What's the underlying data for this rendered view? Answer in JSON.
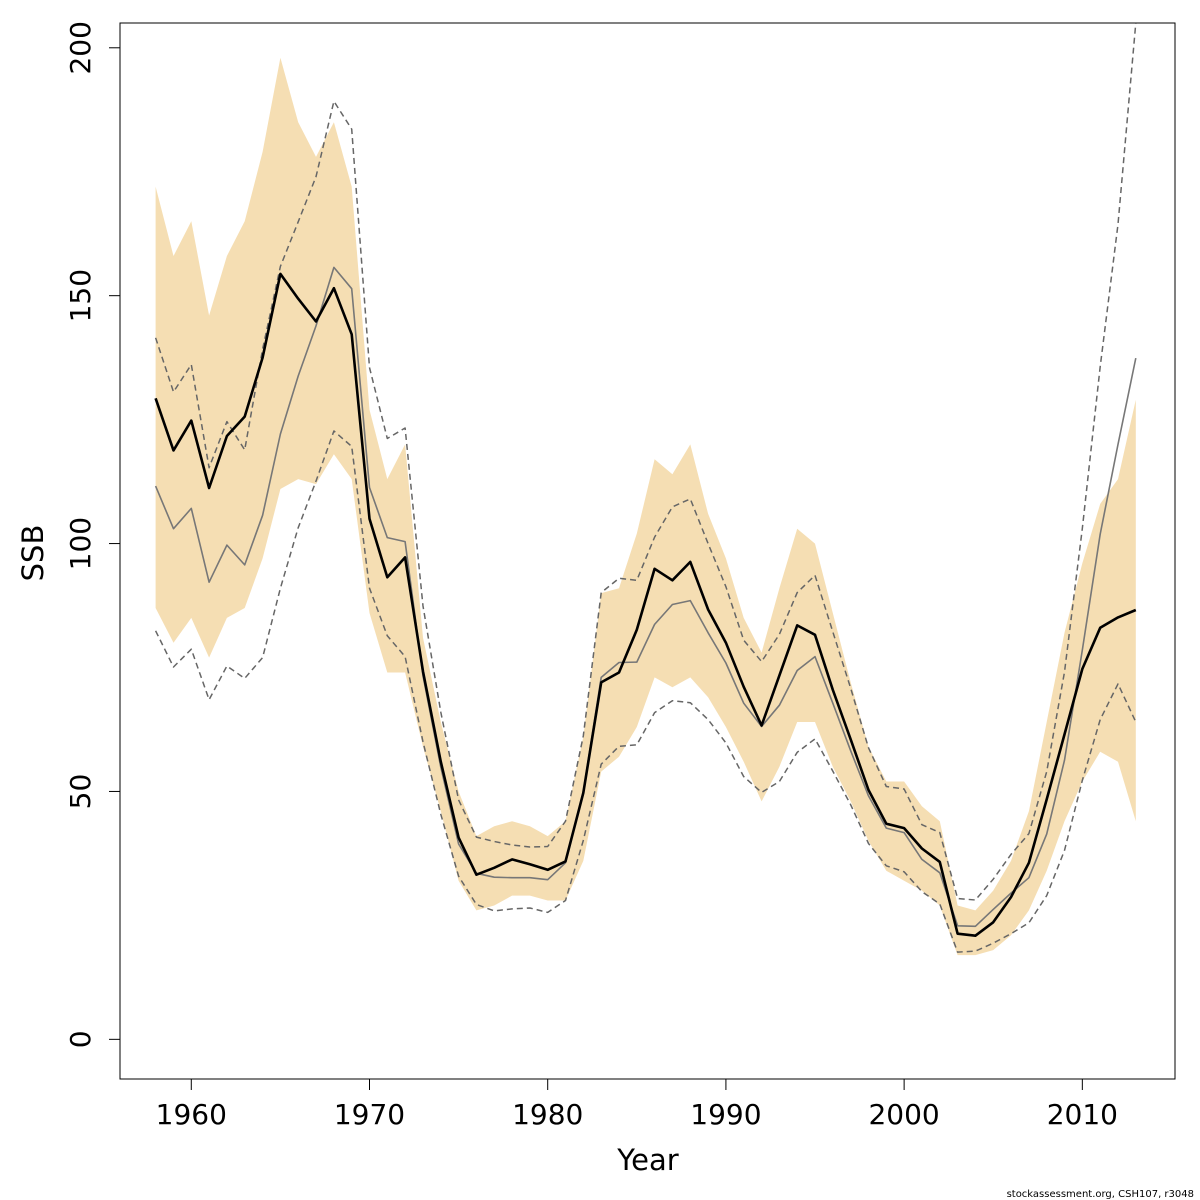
{
  "chart_data": {
    "type": "line",
    "xlabel": "Year",
    "ylabel": "SSB",
    "xlim": [
      1956.0,
      2015.2
    ],
    "ylim": [
      -8,
      205
    ],
    "x_ticks": [
      1960,
      1970,
      1980,
      1990,
      2000,
      2010
    ],
    "y_ticks": [
      0,
      50,
      100,
      150,
      200
    ],
    "grid": false,
    "colors": {
      "band": "#f5deb3",
      "thick_line": "#000000",
      "thin_line": "#777777",
      "dashed_line": "#666666"
    },
    "years": [
      1958,
      1959,
      1960,
      1961,
      1962,
      1963,
      1964,
      1965,
      1966,
      1967,
      1968,
      1969,
      1970,
      1971,
      1972,
      1973,
      1974,
      1975,
      1976,
      1977,
      1978,
      1979,
      1980,
      1981,
      1982,
      1983,
      1984,
      1985,
      1986,
      1987,
      1988,
      1989,
      1990,
      1991,
      1992,
      1993,
      1994,
      1995,
      1996,
      1997,
      1998,
      1999,
      2000,
      2001,
      2002,
      2003,
      2004,
      2005,
      2006,
      2007,
      2008,
      2009,
      2010,
      2011,
      2012,
      2013
    ],
    "series": [
      {
        "role": "confidence-band",
        "upper": [
          172,
          158,
          165,
          146,
          158,
          165,
          179,
          198,
          185,
          178,
          185,
          172,
          127,
          113,
          120,
          81,
          64,
          50,
          41,
          43,
          44,
          43,
          41,
          44,
          61,
          90,
          91,
          102,
          117,
          114,
          120,
          106,
          97,
          85,
          78,
          91,
          103,
          100,
          86,
          72,
          59,
          52,
          52,
          47,
          44,
          27,
          26,
          30,
          36,
          46,
          64,
          82,
          96,
          108,
          113,
          129
        ],
        "lower": [
          87,
          80,
          85,
          77,
          85,
          87,
          97,
          111,
          113,
          112,
          118,
          113,
          86,
          74,
          74,
          59,
          46,
          32,
          26,
          27,
          29,
          29,
          28,
          28,
          36,
          54,
          57,
          63,
          73,
          71,
          73,
          69,
          63,
          56,
          48,
          55,
          64,
          64,
          55,
          48,
          40,
          34,
          32,
          30,
          27,
          17,
          17,
          18,
          21,
          26,
          34,
          44,
          52,
          58,
          56,
          44
        ]
      },
      {
        "role": "estimate-thick",
        "values": [
          129.3,
          118.8,
          124.8,
          111.2,
          121.7,
          125.6,
          137.5,
          154.4,
          149.4,
          144.8,
          151.5,
          142.2,
          105.0,
          93.2,
          97.2,
          74.2,
          56.0,
          40.7,
          33.2,
          34.6,
          36.3,
          35.3,
          34.2,
          35.9,
          49.7,
          72.0,
          74.0,
          82.6,
          94.9,
          92.6,
          96.3,
          86.7,
          80.0,
          71.1,
          63.3,
          73.4,
          83.5,
          81.6,
          70.5,
          60.5,
          50.3,
          43.5,
          42.6,
          38.5,
          35.8,
          21.3,
          20.9,
          23.6,
          28.7,
          35.6,
          48.4,
          61.5,
          74.7,
          83.0,
          85.1,
          86.6
        ]
      },
      {
        "role": "estimate-thin",
        "values": [
          111.6,
          103.0,
          107.1,
          92.2,
          99.7,
          95.7,
          105.7,
          122.1,
          133.8,
          143.9,
          155.7,
          151.4,
          111.3,
          101.2,
          100.4,
          73.3,
          54.9,
          39.4,
          33.5,
          32.7,
          32.6,
          32.6,
          32.2,
          35.6,
          50.0,
          73.0,
          76.0,
          76.1,
          83.7,
          87.7,
          88.5,
          82.0,
          75.9,
          67.8,
          63.1,
          67.4,
          74.4,
          77.2,
          67.8,
          58.2,
          49.1,
          42.6,
          41.7,
          36.3,
          33.6,
          22.9,
          22.8,
          26.2,
          29.5,
          32.6,
          41.4,
          56.3,
          78.5,
          101.9,
          120.0,
          137.4
        ]
      },
      {
        "role": "bound-dashed-upper",
        "values": [
          141.5,
          130.6,
          136.1,
          115.3,
          124.6,
          118.9,
          139.2,
          155.9,
          164.9,
          174.0,
          189.2,
          183.6,
          135.5,
          121.2,
          123.3,
          87.4,
          66.0,
          48.3,
          40.8,
          39.9,
          39.2,
          38.8,
          38.9,
          44.0,
          61.2,
          90.1,
          93.0,
          92.6,
          101.3,
          107.4,
          109.0,
          100.0,
          91.3,
          80.5,
          76.2,
          81.7,
          90.1,
          93.6,
          82.2,
          70.8,
          58.8,
          51.0,
          50.5,
          43.3,
          41.7,
          28.4,
          28.1,
          32.3,
          37.3,
          41.5,
          54.0,
          74.1,
          103.0,
          135.7,
          164.4,
          205.0
        ]
      },
      {
        "role": "bound-dashed-lower",
        "values": [
          82.4,
          75.1,
          78.7,
          68.5,
          75.3,
          72.8,
          77.0,
          91.0,
          103.2,
          112.6,
          122.7,
          119.6,
          91.0,
          81.4,
          77.2,
          60.0,
          45.4,
          32.9,
          27.2,
          25.9,
          26.3,
          26.5,
          25.6,
          28.0,
          40.1,
          55.5,
          59.1,
          59.4,
          65.9,
          68.3,
          67.9,
          64.5,
          59.8,
          53.0,
          49.8,
          52.0,
          57.9,
          60.6,
          54.1,
          47.3,
          39.5,
          35.0,
          33.8,
          29.8,
          27.3,
          17.6,
          17.8,
          19.4,
          21.3,
          23.5,
          29.0,
          38.1,
          52.2,
          64.5,
          71.7,
          64.0
        ]
      }
    ]
  },
  "axes": {
    "x_title": "Year",
    "y_title": "SSB"
  },
  "footer": {
    "credit": "stockassessment.org, CSH107, r3048"
  }
}
